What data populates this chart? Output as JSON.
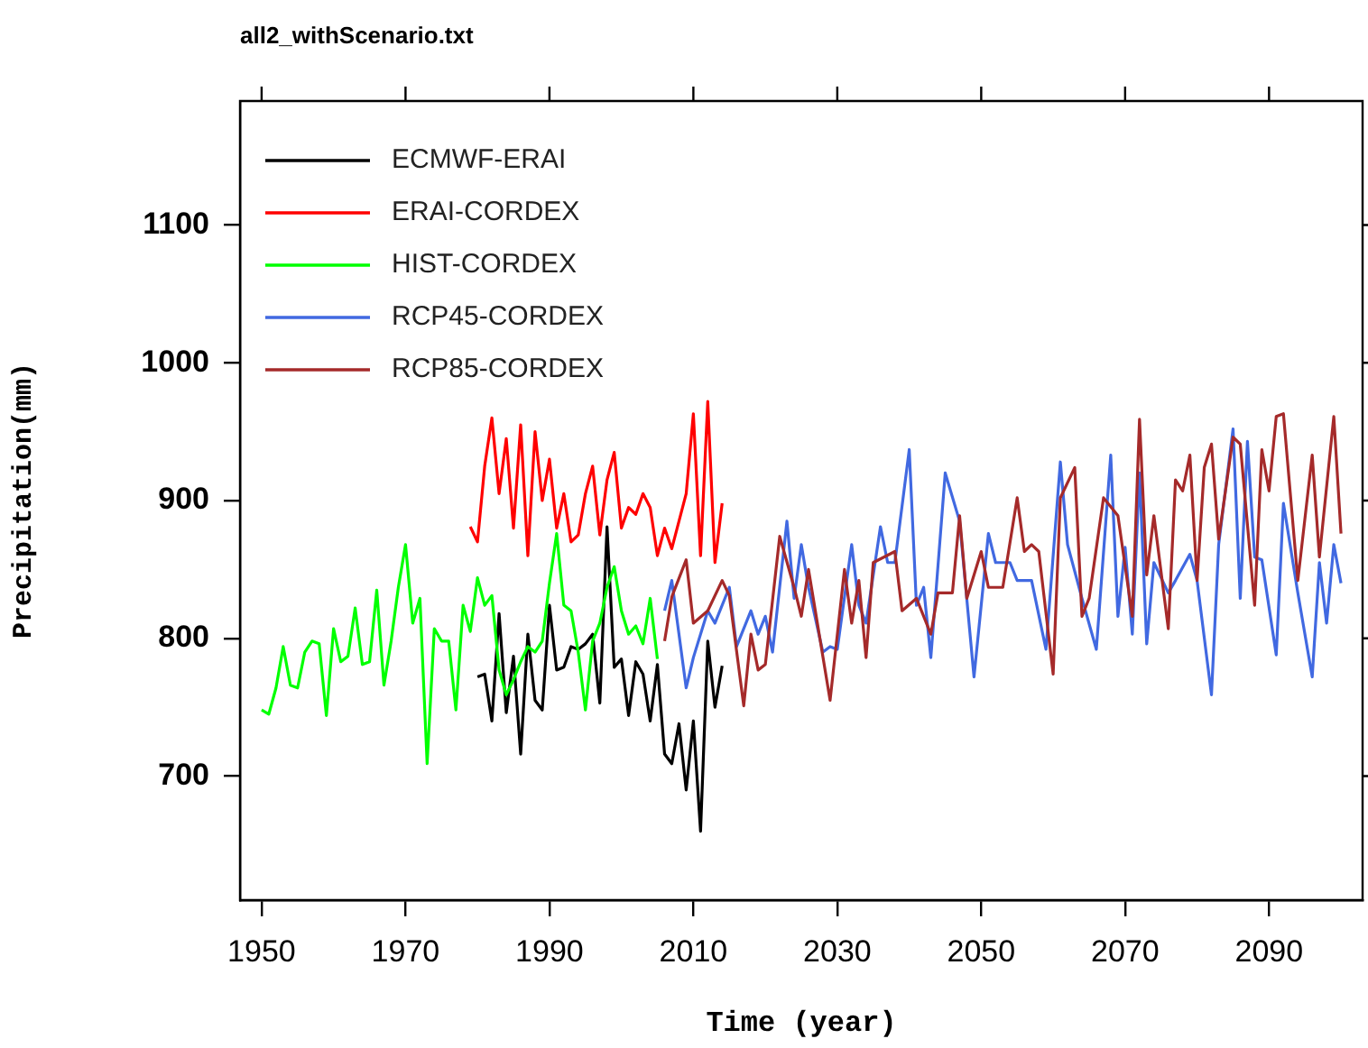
{
  "chart_data": {
    "type": "line",
    "title": "all2_withScenario.txt",
    "xlabel": "Time (year)",
    "ylabel": "Precipitation(mm)",
    "xlim": [
      1947,
      2103
    ],
    "xticks": [
      1950,
      1970,
      1990,
      2010,
      2030,
      2050,
      2070,
      2090
    ],
    "ylim": [
      610,
      1190
    ],
    "yticks": [
      700,
      800,
      900,
      1000,
      1100
    ],
    "grid": false,
    "legend": "top left",
    "marker": "none",
    "line_style": "solid",
    "series": [
      {
        "name": "ECMWF-ERAI",
        "color": "#000000",
        "x": [
          1980,
          1981,
          1982,
          1983,
          1984,
          1985,
          1986,
          1987,
          1988,
          1989,
          1990,
          1991,
          1992,
          1993,
          1994,
          1995,
          1996,
          1997,
          1998,
          1999,
          2000,
          2001,
          2002,
          2003,
          2004,
          2005,
          2006,
          2007,
          2008,
          2009,
          2010,
          2011,
          2012,
          2013,
          2014
        ],
        "values": [
          772,
          774,
          740,
          818,
          746,
          787,
          716,
          803,
          755,
          748,
          824,
          777,
          779,
          794,
          792,
          796,
          803,
          753,
          881,
          779,
          785,
          744,
          783,
          774,
          740,
          781,
          716,
          709,
          738,
          690,
          740,
          660,
          798,
          750,
          780
        ]
      },
      {
        "name": "ERAI-CORDEX",
        "color": "#ff0000",
        "x": [
          1979,
          1980,
          1981,
          1982,
          1983,
          1984,
          1985,
          1986,
          1987,
          1988,
          1989,
          1990,
          1991,
          1992,
          1993,
          1994,
          1995,
          1996,
          1997,
          1998,
          1999,
          2000,
          2001,
          2002,
          2003,
          2004,
          2005,
          2006,
          2007,
          2008,
          2009,
          2010,
          2011,
          2012,
          2013,
          2014
        ],
        "values": [
          881,
          870,
          925,
          960,
          905,
          945,
          880,
          955,
          860,
          950,
          900,
          930,
          880,
          905,
          870,
          875,
          905,
          925,
          875,
          915,
          935,
          880,
          895,
          890,
          905,
          895,
          860,
          880,
          865,
          885,
          905,
          963,
          860,
          972,
          855,
          898
        ]
      },
      {
        "name": "HIST-CORDEX",
        "color": "#00ff00",
        "x": [
          1950,
          1951,
          1952,
          1953,
          1954,
          1955,
          1956,
          1957,
          1958,
          1959,
          1960,
          1961,
          1962,
          1963,
          1964,
          1965,
          1966,
          1967,
          1968,
          1969,
          1970,
          1971,
          1972,
          1973,
          1974,
          1975,
          1976,
          1977,
          1978,
          1979,
          1980,
          1981,
          1982,
          1983,
          1984,
          1985,
          1986,
          1987,
          1988,
          1989,
          1990,
          1991,
          1992,
          1993,
          1994,
          1995,
          1996,
          1997,
          1998,
          1999,
          2000,
          2001,
          2002,
          2003,
          2004,
          2005
        ],
        "values": [
          748,
          745,
          764,
          794,
          766,
          764,
          790,
          798,
          796,
          744,
          807,
          783,
          787,
          822,
          781,
          783,
          835,
          766,
          798,
          837,
          868,
          811,
          829,
          709,
          807,
          798,
          798,
          748,
          824,
          805,
          844,
          824,
          831,
          777,
          759,
          770,
          783,
          794,
          790,
          798,
          840,
          876,
          824,
          820,
          790,
          748,
          798,
          811,
          837,
          852,
          820,
          803,
          809,
          796,
          829,
          785
        ]
      },
      {
        "name": "RCP45-CORDEX",
        "color": "#4169e1",
        "x": [
          2006,
          2007,
          2009,
          2010,
          2012,
          2013,
          2015,
          2016,
          2018,
          2019,
          2020,
          2021,
          2023,
          2024,
          2025,
          2026,
          2028,
          2029,
          2030,
          2032,
          2033,
          2034,
          2036,
          2037,
          2038,
          2040,
          2041,
          2042,
          2043,
          2045,
          2047,
          2049,
          2051,
          2052,
          2054,
          2055,
          2057,
          2059,
          2061,
          2062,
          2064,
          2066,
          2068,
          2069,
          2070,
          2071,
          2072,
          2073,
          2074,
          2076,
          2077,
          2079,
          2080,
          2082,
          2083,
          2085,
          2086,
          2087,
          2088,
          2089,
          2091,
          2092,
          2094,
          2096,
          2097,
          2098,
          2099,
          2100
        ],
        "values": [
          820,
          842,
          764,
          786,
          820,
          811,
          837,
          794,
          820,
          803,
          816,
          790,
          885,
          829,
          868,
          837,
          790,
          794,
          792,
          868,
          824,
          811,
          881,
          855,
          855,
          937,
          824,
          837,
          786,
          920,
          885,
          772,
          876,
          855,
          855,
          842,
          842,
          792,
          928,
          868,
          829,
          792,
          933,
          816,
          866,
          803,
          920,
          796,
          855,
          833,
          842,
          861,
          842,
          759,
          868,
          952,
          829,
          943,
          859,
          857,
          788,
          898,
          833,
          772,
          855,
          811,
          868,
          840
        ]
      },
      {
        "name": "RCP85-CORDEX",
        "color": "#a52a2a",
        "x": [
          2006,
          2007,
          2009,
          2010,
          2012,
          2014,
          2015,
          2017,
          2018,
          2019,
          2020,
          2022,
          2024,
          2025,
          2026,
          2029,
          2031,
          2032,
          2033,
          2034,
          2035,
          2038,
          2039,
          2041,
          2043,
          2044,
          2046,
          2047,
          2048,
          2050,
          2051,
          2053,
          2055,
          2056,
          2057,
          2058,
          2060,
          2061,
          2063,
          2064,
          2065,
          2067,
          2069,
          2071,
          2072,
          2073,
          2074,
          2076,
          2077,
          2078,
          2079,
          2080,
          2081,
          2082,
          2083,
          2085,
          2086,
          2088,
          2089,
          2090,
          2091,
          2092,
          2094,
          2096,
          2097,
          2099,
          2100
        ],
        "values": [
          798,
          830,
          857,
          811,
          820,
          842,
          831,
          751,
          803,
          777,
          781,
          874,
          837,
          816,
          850,
          755,
          850,
          811,
          842,
          786,
          855,
          863,
          820,
          829,
          803,
          833,
          833,
          889,
          829,
          863,
          837,
          837,
          902,
          863,
          868,
          863,
          774,
          902,
          924,
          816,
          829,
          902,
          889,
          816,
          959,
          846,
          889,
          807,
          915,
          907,
          933,
          842,
          924,
          941,
          872,
          946,
          941,
          824,
          937,
          907,
          961,
          963,
          842,
          933,
          859,
          961,
          876
        ]
      }
    ]
  }
}
